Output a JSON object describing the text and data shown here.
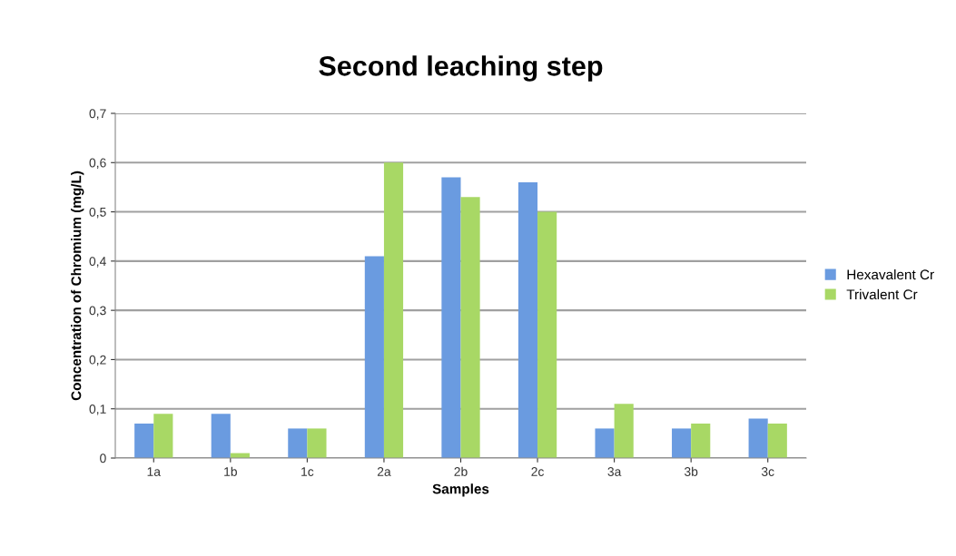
{
  "chart_data": {
    "type": "bar",
    "title": "Second leaching step",
    "xlabel": "Samples",
    "ylabel": "Concentration of Chromium (mg/L)",
    "categories": [
      "1a",
      "1b",
      "1c",
      "2a",
      "2b",
      "2c",
      "3a",
      "3b",
      "3c"
    ],
    "series": [
      {
        "name": "Hexavalent Cr",
        "color": "#6a9be0",
        "values": [
          0.07,
          0.09,
          0.06,
          0.41,
          0.57,
          0.56,
          0.06,
          0.06,
          0.08
        ]
      },
      {
        "name": "Trivalent Cr",
        "color": "#a8d865",
        "values": [
          0.09,
          0.01,
          0.06,
          0.6,
          0.53,
          0.5,
          0.11,
          0.07,
          0.07
        ]
      }
    ],
    "ylim": [
      0,
      0.7
    ],
    "yticks": [
      0,
      {
        "value": 0.1,
        "label": "0,1"
      },
      {
        "value": 0.2,
        "label": "0,2"
      },
      {
        "value": 0.3,
        "label": "0,3"
      },
      {
        "value": 0.4,
        "label": "0,4"
      },
      {
        "value": 0.5,
        "label": "0,5"
      },
      {
        "value": 0.6,
        "label": "0,6"
      },
      {
        "value": 0.7,
        "label": "0,7"
      }
    ],
    "grid": "y",
    "legend": "right"
  }
}
